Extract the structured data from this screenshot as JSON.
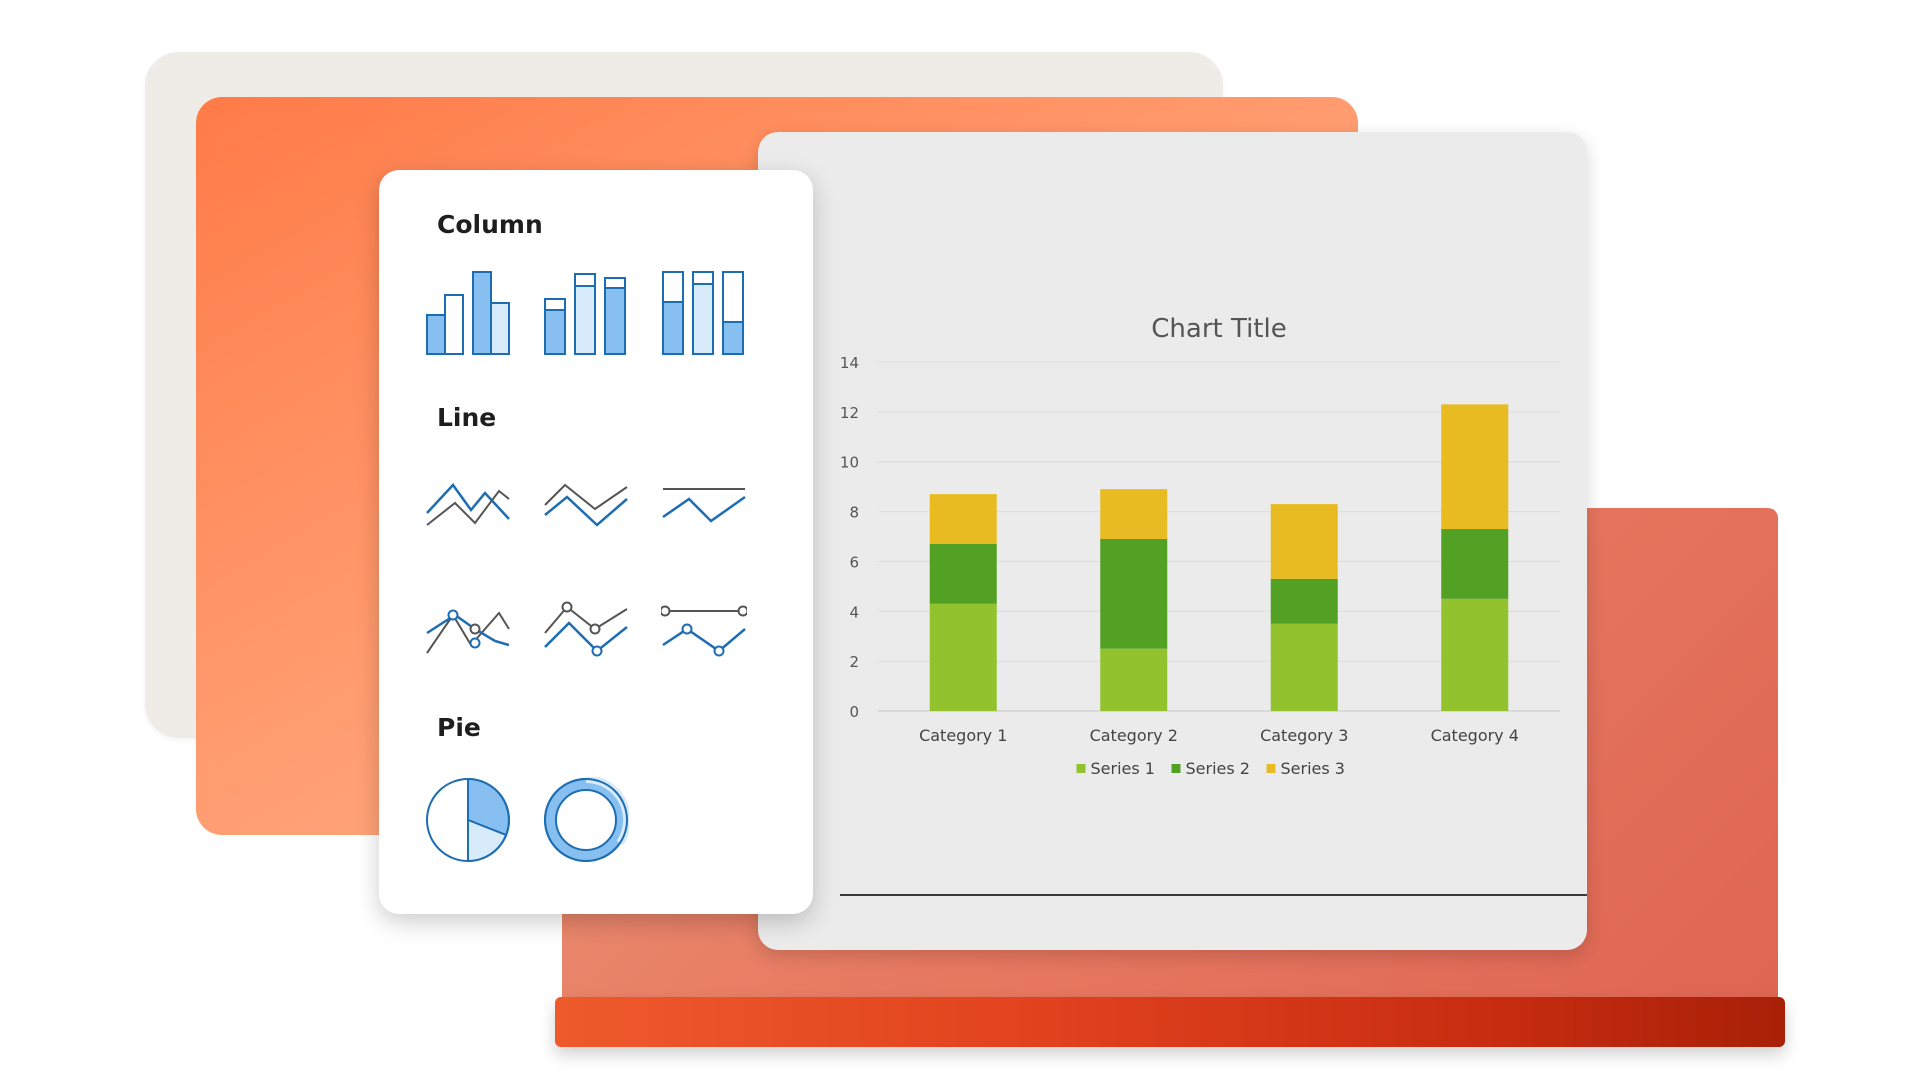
{
  "gallery": {
    "column_label": "Column",
    "line_label": "Line",
    "pie_label": "Pie"
  },
  "icons": {
    "column": [
      "clustered-column-icon",
      "stacked-column-icon",
      "percent-stacked-column-icon"
    ],
    "line": [
      "line-icon",
      "stacked-line-icon",
      "percent-stacked-line-icon"
    ],
    "line_markers": [
      "line-with-markers-icon",
      "stacked-line-with-markers-icon",
      "percent-stacked-line-with-markers-icon"
    ],
    "pie": [
      "pie-icon",
      "doughnut-icon"
    ]
  },
  "colors": {
    "series": [
      "#92c22d",
      "#52a125",
      "#e8bb23"
    ],
    "icon_stroke": "#1d6db3",
    "icon_fill": "#86bff0",
    "icon_fill_light": "#d8ebfb"
  },
  "chart_data": {
    "type": "bar",
    "stacked": true,
    "title": "Chart Title",
    "categories": [
      "Category 1",
      "Category 2",
      "Category 3",
      "Category 4"
    ],
    "series": [
      {
        "name": "Series 1",
        "values": [
          4.3,
          2.5,
          3.5,
          4.5
        ]
      },
      {
        "name": "Series 2",
        "values": [
          2.4,
          4.4,
          1.8,
          2.8
        ]
      },
      {
        "name": "Series 3",
        "values": [
          2.0,
          2.0,
          3.0,
          5.0
        ]
      }
    ],
    "ylim": [
      0,
      14
    ],
    "yticks": [
      "0",
      "2",
      "4",
      "6",
      "8",
      "10",
      "12",
      "14"
    ],
    "grid": true,
    "legend": "bottom"
  }
}
